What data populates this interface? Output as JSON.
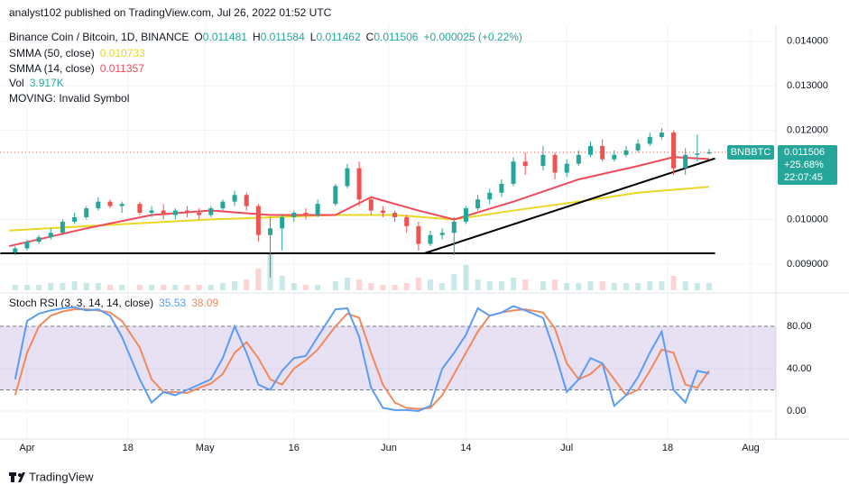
{
  "chart_data": {
    "type": "candlestick",
    "header": "analyst102 published on TradingView.com, Jul 26, 2022 01:52 UTC",
    "legend": {
      "symbol": "Binance Coin / Bitcoin, 1D, BINANCE",
      "letters": [
        "O",
        "H",
        "L",
        "C"
      ],
      "change": "+0.000025 (+0.22%)",
      "vol_label": "Vol",
      "volume": "3.917K",
      "moving": "MOVING: Invalid Symbol"
    },
    "ticker": "BNBBTC",
    "pct_change": "+25.68%",
    "countdown": "22:07:45",
    "up_color": "#26a69a",
    "down_color": "#ef5350",
    "xlim": [
      -4.56,
      126.26
    ],
    "xticks": [
      {
        "value": 0,
        "label": "Apr"
      },
      {
        "value": 17,
        "label": "18"
      },
      {
        "value": 30,
        "label": "May"
      },
      {
        "value": 45,
        "label": "16"
      },
      {
        "value": 61,
        "label": "Jun"
      },
      {
        "value": 74,
        "label": "14"
      },
      {
        "value": 91,
        "label": "Jul"
      },
      {
        "value": 108,
        "label": "18"
      },
      {
        "value": 122,
        "label": "Aug"
      }
    ],
    "ylim": [
      0.00841,
      0.01436
    ],
    "yticks": [
      {
        "value": 0.014,
        "label": "0.014000"
      },
      {
        "value": 0.013,
        "label": "0.013000"
      },
      {
        "value": 0.012,
        "label": "0.012000"
      },
      {
        "value": 0.01,
        "label": "0.010000"
      },
      {
        "value": 0.009,
        "label": "0.009000"
      }
    ],
    "grid": true,
    "x": [
      -2,
      0,
      2,
      4,
      6,
      8,
      10,
      12,
      14,
      16,
      19,
      21,
      23,
      25,
      27,
      29,
      31,
      33,
      35,
      37,
      39,
      41,
      43,
      45,
      47,
      49,
      52,
      54,
      56,
      58,
      60,
      62,
      64,
      66,
      68,
      70,
      72,
      74,
      76,
      78,
      80,
      82,
      84,
      87,
      89,
      91,
      93,
      95,
      97,
      99,
      101,
      103,
      105,
      107,
      109,
      111,
      113,
      115
    ],
    "open": [
      0.00926,
      0.00935,
      0.0095,
      0.0096,
      0.0097,
      0.00995,
      0.01005,
      0.01025,
      0.0104,
      0.0103,
      0.01035,
      0.01015,
      0.0102,
      0.0101,
      0.0102,
      0.01015,
      0.0101,
      0.01025,
      0.0104,
      0.01055,
      0.0103,
      0.00965,
      0.0098,
      0.01005,
      0.01015,
      0.0101,
      0.01035,
      0.01075,
      0.01115,
      0.01045,
      0.0102,
      0.01015,
      0.01005,
      0.00985,
      0.00945,
      0.00965,
      0.0097,
      0.00995,
      0.01025,
      0.01045,
      0.0106,
      0.0108,
      0.0113,
      0.0112,
      0.01145,
      0.01105,
      0.01125,
      0.01145,
      0.01165,
      0.01135,
      0.01145,
      0.01155,
      0.0117,
      0.01185,
      0.01195,
      0.01115,
      0.01145,
      0.011481
    ],
    "high": [
      0.0094,
      0.00955,
      0.00965,
      0.0098,
      0.01,
      0.01015,
      0.0103,
      0.0105,
      0.01045,
      0.0104,
      0.0104,
      0.0103,
      0.01035,
      0.01025,
      0.0103,
      0.01025,
      0.0103,
      0.01045,
      0.01065,
      0.0106,
      0.01035,
      0.01005,
      0.0101,
      0.0102,
      0.01025,
      0.01045,
      0.0108,
      0.01125,
      0.0113,
      0.0105,
      0.0103,
      0.0102,
      0.0101,
      0.00995,
      0.00975,
      0.0098,
      0.01005,
      0.0103,
      0.01055,
      0.0107,
      0.0109,
      0.0114,
      0.0115,
      0.01165,
      0.0115,
      0.01135,
      0.01155,
      0.01175,
      0.0118,
      0.01155,
      0.01165,
      0.0118,
      0.01195,
      0.01205,
      0.012,
      0.0116,
      0.0119,
      0.011584
    ],
    "low": [
      0.0092,
      0.0093,
      0.00945,
      0.00955,
      0.00965,
      0.0099,
      0.01,
      0.0102,
      0.01025,
      0.01015,
      0.0101,
      0.01005,
      0.01,
      0.01,
      0.01005,
      0.01,
      0.01005,
      0.0102,
      0.0103,
      0.0102,
      0.0095,
      0.0087,
      0.0093,
      0.00995,
      0.01,
      0.01005,
      0.0103,
      0.0107,
      0.0103,
      0.0101,
      0.01005,
      0.00995,
      0.0097,
      0.0093,
      0.0094,
      0.00955,
      0.0092,
      0.0099,
      0.0102,
      0.01035,
      0.0105,
      0.01075,
      0.011,
      0.0111,
      0.0109,
      0.01095,
      0.0112,
      0.0114,
      0.0113,
      0.0113,
      0.0114,
      0.0115,
      0.01165,
      0.0118,
      0.011,
      0.011,
      0.0113,
      0.011462
    ],
    "close": [
      0.00935,
      0.0095,
      0.0096,
      0.0097,
      0.00995,
      0.01005,
      0.01025,
      0.0104,
      0.0103,
      0.01035,
      0.01015,
      0.0102,
      0.0101,
      0.0102,
      0.01015,
      0.0101,
      0.01025,
      0.0104,
      0.01055,
      0.0103,
      0.00965,
      0.0098,
      0.01005,
      0.01015,
      0.0101,
      0.01035,
      0.01075,
      0.01115,
      0.01045,
      0.0102,
      0.01015,
      0.01005,
      0.00985,
      0.00945,
      0.00965,
      0.0097,
      0.00995,
      0.01025,
      0.01045,
      0.0106,
      0.0108,
      0.0113,
      0.0112,
      0.01145,
      0.01105,
      0.01125,
      0.01145,
      0.01165,
      0.01135,
      0.01145,
      0.01155,
      0.0117,
      0.01185,
      0.01195,
      0.01115,
      0.01145,
      0.011481,
      0.011506
    ],
    "volume": [
      3,
      3,
      3,
      4,
      4,
      5,
      4,
      4,
      3,
      3,
      3,
      3,
      3,
      3,
      3,
      3,
      3,
      4,
      5,
      6,
      12,
      20,
      8,
      4,
      3,
      3,
      5,
      7,
      6,
      4,
      3,
      3,
      4,
      7,
      6,
      4,
      9,
      14,
      6,
      5,
      5,
      7,
      6,
      5,
      6,
      4,
      4,
      5,
      5,
      4,
      4,
      4,
      5,
      5,
      8,
      5,
      4,
      3.917
    ],
    "vol_lim": [
      0,
      25
    ],
    "sma": [
      {
        "name": "SMMA (50, close)",
        "color": "#e8d825",
        "x": [
          -3,
          10,
          31,
          52,
          62,
          72,
          82,
          93,
          103,
          115
        ],
        "values": [
          0.00975,
          0.00985,
          0.01,
          0.0101,
          0.0101,
          0.01,
          0.0102,
          0.0104,
          0.0106,
          0.010733
        ]
      },
      {
        "name": "SMMA (14, close)",
        "color": "#f04a5a",
        "x": [
          -3,
          10,
          21,
          31,
          41,
          52,
          58,
          66,
          72,
          82,
          93,
          103,
          109,
          115
        ],
        "values": [
          0.0094,
          0.0098,
          0.0101,
          0.0102,
          0.0101,
          0.0101,
          0.0105,
          0.0102,
          0.01,
          0.0104,
          0.0109,
          0.0112,
          0.0114,
          0.011357
        ]
      }
    ],
    "trendlines": [
      {
        "x": [
          -4.5,
          116
        ],
        "y": [
          0.00924,
          0.00924
        ]
      },
      {
        "x": [
          67,
          116
        ],
        "y": [
          0.00924,
          0.01137
        ]
      }
    ],
    "stoch": {
      "name": "Stoch RSI (3, 3, 14, 14, close)",
      "ylim": [
        -25.5,
        108.9
      ],
      "yticks": [
        {
          "value": 80,
          "label": "80.00"
        },
        {
          "value": 40,
          "label": "40.00"
        },
        {
          "value": 0,
          "label": "0.00"
        }
      ],
      "band": [
        20,
        80
      ],
      "series": [
        {
          "name": "K",
          "color": "#5b9cf6",
          "values": [
            30,
            85,
            92,
            95,
            97,
            98,
            95,
            96,
            90,
            70,
            30,
            8,
            18,
            15,
            20,
            25,
            30,
            50,
            80,
            55,
            25,
            20,
            38,
            50,
            52,
            70,
            96,
            97,
            70,
            22,
            3,
            1,
            1,
            0,
            5,
            40,
            55,
            72,
            97,
            90,
            93,
            99,
            95,
            88,
            55,
            18,
            30,
            50,
            45,
            5,
            15,
            32,
            55,
            75,
            20,
            8,
            38,
            35.53
          ]
        },
        {
          "name": "D",
          "color": "#f08a5d",
          "values": [
            15,
            55,
            80,
            90,
            94,
            96,
            96,
            95,
            93,
            85,
            60,
            30,
            18,
            18,
            17,
            22,
            26,
            35,
            55,
            65,
            50,
            30,
            25,
            40,
            48,
            58,
            80,
            92,
            88,
            55,
            25,
            8,
            3,
            2,
            3,
            15,
            35,
            55,
            75,
            90,
            93,
            95,
            96,
            93,
            78,
            45,
            30,
            35,
            45,
            30,
            15,
            20,
            38,
            58,
            55,
            25,
            22,
            38.09
          ]
        }
      ]
    },
    "footer": "TradingView"
  }
}
